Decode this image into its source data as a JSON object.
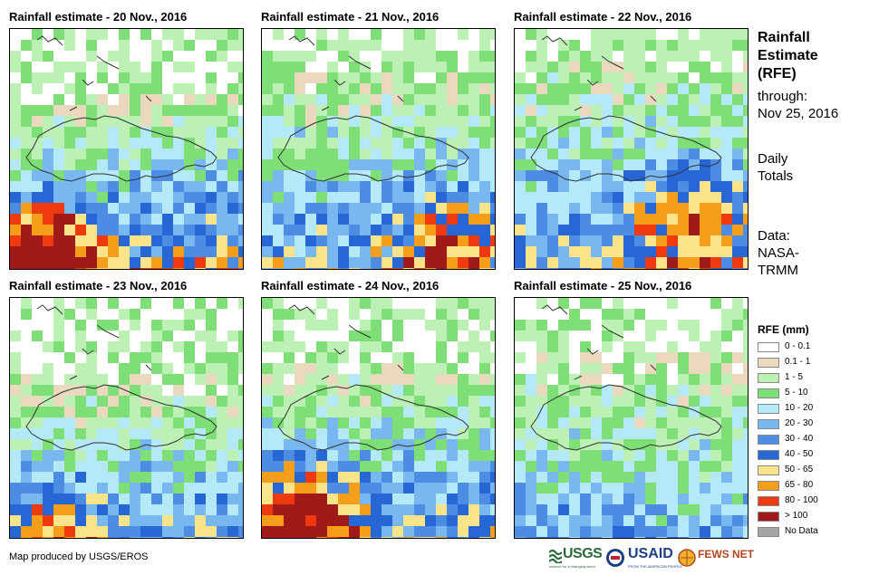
{
  "panels": [
    {
      "title": "Rainfall estimate - 20 Nov., 2016"
    },
    {
      "title": "Rainfall estimate - 21 Nov., 2016"
    },
    {
      "title": "Rainfall estimate - 22 Nov., 2016"
    },
    {
      "title": "Rainfall estimate - 23 Nov., 2016"
    },
    {
      "title": "Rainfall estimate - 24 Nov., 2016"
    },
    {
      "title": "Rainfall estimate - 25 Nov., 2016"
    }
  ],
  "side": {
    "title_lines": [
      "Rainfall",
      "Estimate",
      "(RFE)"
    ],
    "through_label": "through:",
    "through_date": "Nov 25, 2016",
    "totals_lines": [
      "Daily",
      "Totals"
    ],
    "data_lines": [
      "Data:",
      "NASA-",
      "TRMM"
    ]
  },
  "legend": {
    "title": "RFE (mm)",
    "items": [
      {
        "label": "0 - 0.1",
        "color": "#ffffff"
      },
      {
        "label": "0.1 - 1",
        "color": "#ead9bf"
      },
      {
        "label": "1 - 5",
        "color": "#bdf0b4"
      },
      {
        "label": "5 - 10",
        "color": "#7ddf76"
      },
      {
        "label": "10 - 20",
        "color": "#b4eaf8"
      },
      {
        "label": "20 - 30",
        "color": "#78b7ef"
      },
      {
        "label": "30 - 40",
        "color": "#4c8ce3"
      },
      {
        "label": "40 - 50",
        "color": "#2767d5"
      },
      {
        "label": "50 - 65",
        "color": "#fde38a"
      },
      {
        "label": "65 - 80",
        "color": "#f59e1a"
      },
      {
        "label": "80 - 100",
        "color": "#ee3a0e"
      },
      {
        "label": "> 100",
        "color": "#a01a1a"
      },
      {
        "label": "No Data",
        "color": "#a5a5a5"
      }
    ]
  },
  "credit": "Map produced by USGS/EROS",
  "logos": {
    "usgs": "USGS",
    "usgs_tagline": "science for a changing world",
    "usaid": "USAID",
    "usaid_tagline": "FROM THE AMERICAN PEOPLE",
    "fewsnet": "FEWS NET"
  }
}
